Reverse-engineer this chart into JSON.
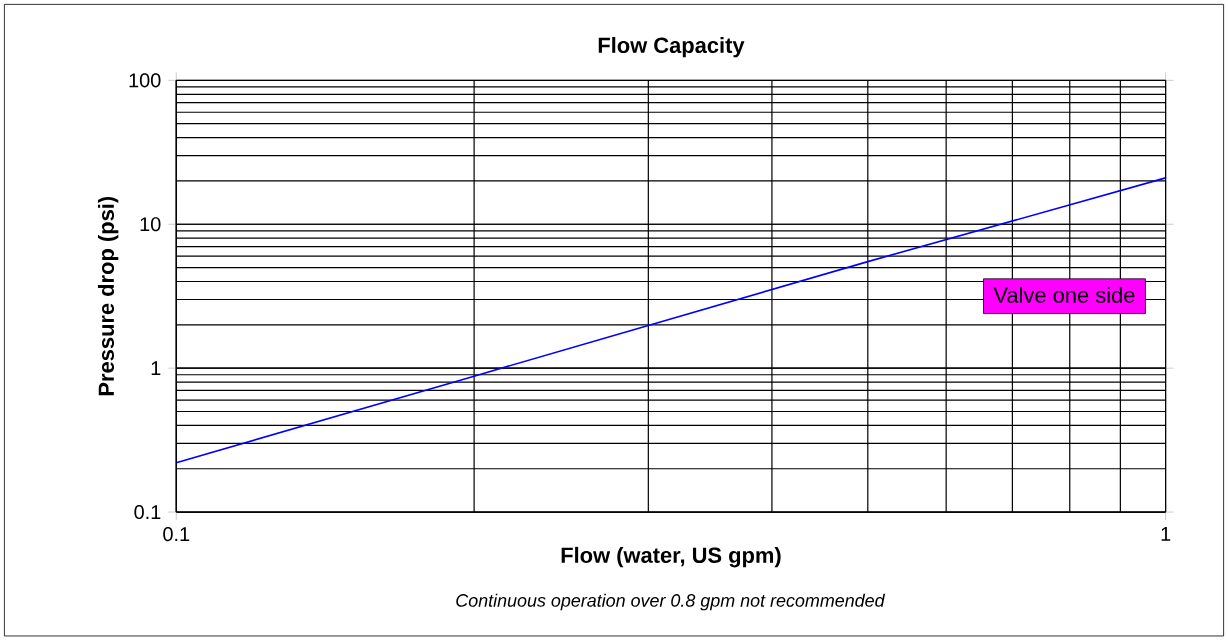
{
  "chart_data": {
    "type": "line",
    "title": "Flow Capacity",
    "xlabel": "Flow (water, US gpm)",
    "ylabel": "Pressure drop (psi)",
    "annotations": [
      "Continuous operation over 0.8 gpm not recommended"
    ],
    "x": [
      0.1,
      0.2,
      0.5,
      1
    ],
    "series": [
      {
        "name": "Valve one side",
        "color": "#0000ff",
        "values": [
          0.22,
          0.88,
          5.5,
          21
        ]
      }
    ],
    "xlim": [
      0.1,
      1
    ],
    "ylim": [
      0.1,
      100
    ],
    "xticks": [
      0.1,
      1
    ],
    "yticks": [
      0.1,
      1,
      10,
      100
    ],
    "log": "xy",
    "grid": true,
    "legend": "right",
    "marker": "none",
    "line_style": "solid"
  }
}
